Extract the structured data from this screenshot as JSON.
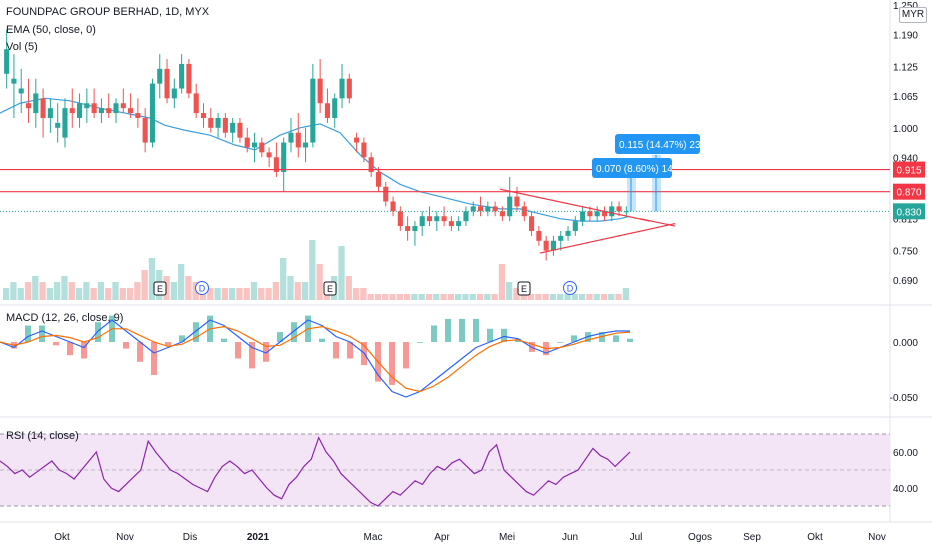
{
  "header": {
    "title": "FOUNDPAC GROUP BERHAD, 1D, MYX",
    "ema_label": "EMA (50, close, 0)",
    "vol_label": "Vol (5)",
    "macd_label": "MACD (12, 26, close, 9)",
    "rsi_label": "RSI (14, close)",
    "currency": "MYR"
  },
  "colors": {
    "up": "#26a69a",
    "down": "#ef5350",
    "ema": "#3c9ee0",
    "macd": "#2962ff",
    "signal": "#ff6d00",
    "rsi": "#8e24aa",
    "rsi_band": "#f3e5f5",
    "hline": "#f23645",
    "measure": "#2196f3",
    "last": "#26a69a"
  },
  "chart_data": [
    {
      "type": "candlestick",
      "title": "FOUNDPAC GROUP BERHAD, 1D, MYX",
      "ylabel": "MYR",
      "ylim": [
        0.66,
        1.25
      ],
      "yticks": [
        "1.250",
        "1.190",
        "1.125",
        "1.065",
        "1.000",
        "0.940",
        "0.875",
        "0.815",
        "0.750",
        "0.690"
      ],
      "xticks": [
        "Okt",
        "Nov",
        "Dis",
        "2021",
        "Mac",
        "Apr",
        "Mei",
        "Jun",
        "Jul",
        "Ogos",
        "Sep",
        "Okt",
        "Nov"
      ],
      "price_levels": [
        {
          "label": "0.915",
          "value": 0.915
        },
        {
          "label": "0.870",
          "value": 0.87
        },
        {
          "label": "0.830",
          "value": 0.83,
          "kind": "last"
        }
      ],
      "ema_points": [
        [
          0,
          1.03
        ],
        [
          20,
          1.05
        ],
        [
          45,
          1.06
        ],
        [
          70,
          1.055
        ],
        [
          100,
          1.04
        ],
        [
          125,
          1.03
        ],
        [
          150,
          1.02
        ],
        [
          165,
          1.005
        ],
        [
          185,
          0.995
        ],
        [
          210,
          0.985
        ],
        [
          235,
          0.965
        ],
        [
          255,
          0.955
        ],
        [
          280,
          0.985
        ],
        [
          300,
          1.0
        ],
        [
          320,
          1.008
        ],
        [
          340,
          0.99
        ],
        [
          360,
          0.945
        ],
        [
          380,
          0.91
        ],
        [
          400,
          0.885
        ],
        [
          420,
          0.87
        ],
        [
          440,
          0.86
        ],
        [
          470,
          0.845
        ],
        [
          500,
          0.835
        ],
        [
          520,
          0.835
        ],
        [
          540,
          0.825
        ],
        [
          560,
          0.815
        ],
        [
          580,
          0.81
        ],
        [
          600,
          0.81
        ],
        [
          620,
          0.815
        ],
        [
          630,
          0.82
        ]
      ],
      "candles": [
        {
          "o": 1.11,
          "h": 1.2,
          "l": 1.08,
          "c": 1.16
        },
        {
          "o": 1.09,
          "h": 1.15,
          "l": 1.02,
          "c": 1.1
        },
        {
          "o": 1.07,
          "h": 1.12,
          "l": 1.03,
          "c": 1.08
        },
        {
          "o": 1.05,
          "h": 1.1,
          "l": 1.01,
          "c": 1.04
        },
        {
          "o": 1.03,
          "h": 1.1,
          "l": 1.0,
          "c": 1.07
        },
        {
          "o": 1.06,
          "h": 1.08,
          "l": 0.98,
          "c": 1.02
        },
        {
          "o": 1.02,
          "h": 1.06,
          "l": 0.99,
          "c": 1.04
        },
        {
          "o": 1.0,
          "h": 1.05,
          "l": 0.97,
          "c": 1.01
        },
        {
          "o": 0.98,
          "h": 1.06,
          "l": 0.96,
          "c": 1.04
        },
        {
          "o": 1.04,
          "h": 1.08,
          "l": 1.0,
          "c": 1.03
        },
        {
          "o": 1.02,
          "h": 1.07,
          "l": 1.0,
          "c": 1.05
        },
        {
          "o": 1.04,
          "h": 1.08,
          "l": 1.01,
          "c": 1.05
        },
        {
          "o": 1.05,
          "h": 1.08,
          "l": 1.02,
          "c": 1.03
        },
        {
          "o": 1.03,
          "h": 1.06,
          "l": 1.01,
          "c": 1.04
        },
        {
          "o": 1.04,
          "h": 1.07,
          "l": 1.02,
          "c": 1.03
        },
        {
          "o": 1.03,
          "h": 1.06,
          "l": 1.01,
          "c": 1.05
        },
        {
          "o": 1.05,
          "h": 1.08,
          "l": 1.03,
          "c": 1.04
        },
        {
          "o": 1.04,
          "h": 1.07,
          "l": 1.02,
          "c": 1.03
        },
        {
          "o": 1.03,
          "h": 1.06,
          "l": 1.0,
          "c": 1.02
        },
        {
          "o": 1.02,
          "h": 1.04,
          "l": 0.95,
          "c": 0.97
        },
        {
          "o": 0.97,
          "h": 1.1,
          "l": 0.96,
          "c": 1.09
        },
        {
          "o": 1.09,
          "h": 1.15,
          "l": 1.06,
          "c": 1.12
        },
        {
          "o": 1.12,
          "h": 1.14,
          "l": 1.05,
          "c": 1.06
        },
        {
          "o": 1.06,
          "h": 1.1,
          "l": 1.04,
          "c": 1.08
        },
        {
          "o": 1.08,
          "h": 1.15,
          "l": 1.07,
          "c": 1.13
        },
        {
          "o": 1.13,
          "h": 1.14,
          "l": 1.06,
          "c": 1.07
        },
        {
          "o": 1.07,
          "h": 1.09,
          "l": 1.02,
          "c": 1.03
        },
        {
          "o": 1.03,
          "h": 1.05,
          "l": 1.0,
          "c": 1.02
        },
        {
          "o": 1.02,
          "h": 1.04,
          "l": 0.99,
          "c": 1.0
        },
        {
          "o": 1.0,
          "h": 1.03,
          "l": 0.98,
          "c": 1.02
        },
        {
          "o": 1.02,
          "h": 1.03,
          "l": 0.98,
          "c": 0.99
        },
        {
          "o": 0.99,
          "h": 1.02,
          "l": 0.97,
          "c": 1.01
        },
        {
          "o": 1.01,
          "h": 1.02,
          "l": 0.97,
          "c": 0.98
        },
        {
          "o": 0.98,
          "h": 1.0,
          "l": 0.95,
          "c": 0.96
        },
        {
          "o": 0.96,
          "h": 0.99,
          "l": 0.93,
          "c": 0.97
        },
        {
          "o": 0.97,
          "h": 0.98,
          "l": 0.94,
          "c": 0.95
        },
        {
          "o": 0.95,
          "h": 0.96,
          "l": 0.92,
          "c": 0.94
        },
        {
          "o": 0.94,
          "h": 0.97,
          "l": 0.9,
          "c": 0.91
        },
        {
          "o": 0.91,
          "h": 0.98,
          "l": 0.87,
          "c": 0.97
        },
        {
          "o": 0.97,
          "h": 1.02,
          "l": 0.95,
          "c": 0.99
        },
        {
          "o": 0.99,
          "h": 1.03,
          "l": 0.94,
          "c": 0.96
        },
        {
          "o": 0.96,
          "h": 1.0,
          "l": 0.93,
          "c": 0.97
        },
        {
          "o": 0.97,
          "h": 1.13,
          "l": 0.96,
          "c": 1.1
        },
        {
          "o": 1.1,
          "h": 1.14,
          "l": 1.03,
          "c": 1.05
        },
        {
          "o": 1.05,
          "h": 1.08,
          "l": 1.01,
          "c": 1.02
        },
        {
          "o": 1.02,
          "h": 1.07,
          "l": 1.0,
          "c": 1.06
        },
        {
          "o": 1.06,
          "h": 1.13,
          "l": 1.04,
          "c": 1.1
        },
        {
          "o": 1.1,
          "h": 1.11,
          "l": 1.05,
          "c": 1.06
        },
        {
          "o": 0.98,
          "h": 0.99,
          "l": 0.95,
          "c": 0.97
        },
        {
          "o": 0.97,
          "h": 0.98,
          "l": 0.93,
          "c": 0.94
        },
        {
          "o": 0.94,
          "h": 0.95,
          "l": 0.9,
          "c": 0.91
        },
        {
          "o": 0.91,
          "h": 0.92,
          "l": 0.87,
          "c": 0.88
        },
        {
          "o": 0.88,
          "h": 0.89,
          "l": 0.84,
          "c": 0.85
        },
        {
          "o": 0.85,
          "h": 0.86,
          "l": 0.82,
          "c": 0.83
        },
        {
          "o": 0.83,
          "h": 0.84,
          "l": 0.79,
          "c": 0.8
        },
        {
          "o": 0.8,
          "h": 0.82,
          "l": 0.77,
          "c": 0.79
        },
        {
          "o": 0.79,
          "h": 0.81,
          "l": 0.76,
          "c": 0.8
        },
        {
          "o": 0.8,
          "h": 0.83,
          "l": 0.78,
          "c": 0.82
        },
        {
          "o": 0.82,
          "h": 0.84,
          "l": 0.8,
          "c": 0.81
        },
        {
          "o": 0.81,
          "h": 0.83,
          "l": 0.79,
          "c": 0.82
        },
        {
          "o": 0.82,
          "h": 0.84,
          "l": 0.8,
          "c": 0.81
        },
        {
          "o": 0.81,
          "h": 0.82,
          "l": 0.79,
          "c": 0.8
        },
        {
          "o": 0.8,
          "h": 0.82,
          "l": 0.79,
          "c": 0.81
        },
        {
          "o": 0.81,
          "h": 0.84,
          "l": 0.8,
          "c": 0.83
        },
        {
          "o": 0.83,
          "h": 0.85,
          "l": 0.82,
          "c": 0.84
        },
        {
          "o": 0.84,
          "h": 0.86,
          "l": 0.82,
          "c": 0.83
        },
        {
          "o": 0.83,
          "h": 0.85,
          "l": 0.82,
          "c": 0.84
        },
        {
          "o": 0.84,
          "h": 0.85,
          "l": 0.82,
          "c": 0.83
        },
        {
          "o": 0.83,
          "h": 0.84,
          "l": 0.81,
          "c": 0.82
        },
        {
          "o": 0.82,
          "h": 0.9,
          "l": 0.81,
          "c": 0.86
        },
        {
          "o": 0.86,
          "h": 0.88,
          "l": 0.83,
          "c": 0.84
        },
        {
          "o": 0.84,
          "h": 0.85,
          "l": 0.81,
          "c": 0.82
        },
        {
          "o": 0.82,
          "h": 0.83,
          "l": 0.78,
          "c": 0.79
        },
        {
          "o": 0.79,
          "h": 0.8,
          "l": 0.76,
          "c": 0.77
        },
        {
          "o": 0.77,
          "h": 0.78,
          "l": 0.73,
          "c": 0.75
        },
        {
          "o": 0.75,
          "h": 0.78,
          "l": 0.74,
          "c": 0.77
        },
        {
          "o": 0.77,
          "h": 0.79,
          "l": 0.75,
          "c": 0.78
        },
        {
          "o": 0.78,
          "h": 0.8,
          "l": 0.77,
          "c": 0.79
        },
        {
          "o": 0.79,
          "h": 0.82,
          "l": 0.78,
          "c": 0.81
        },
        {
          "o": 0.81,
          "h": 0.84,
          "l": 0.8,
          "c": 0.83
        },
        {
          "o": 0.83,
          "h": 0.84,
          "l": 0.81,
          "c": 0.82
        },
        {
          "o": 0.82,
          "h": 0.84,
          "l": 0.81,
          "c": 0.83
        },
        {
          "o": 0.83,
          "h": 0.84,
          "l": 0.81,
          "c": 0.82
        },
        {
          "o": 0.82,
          "h": 0.85,
          "l": 0.81,
          "c": 0.84
        },
        {
          "o": 0.84,
          "h": 0.85,
          "l": 0.82,
          "c": 0.83
        },
        {
          "o": 0.83,
          "h": 0.84,
          "l": 0.82,
          "c": 0.83
        }
      ],
      "volume": [
        0.2,
        0.3,
        0.2,
        0.3,
        0.4,
        0.3,
        0.2,
        0.3,
        0.4,
        0.3,
        0.2,
        0.3,
        0.2,
        0.3,
        0.2,
        0.3,
        0.2,
        0.2,
        0.3,
        0.5,
        0.7,
        0.5,
        0.4,
        0.3,
        0.6,
        0.4,
        0.3,
        0.2,
        0.2,
        0.2,
        0.2,
        0.2,
        0.2,
        0.2,
        0.3,
        0.2,
        0.2,
        0.3,
        0.7,
        0.4,
        0.3,
        0.3,
        1.0,
        0.6,
        0.3,
        0.4,
        0.9,
        0.4,
        0.2,
        0.2,
        0.1,
        0.1,
        0.1,
        0.1,
        0.1,
        0.1,
        0.1,
        0.1,
        0.1,
        0.1,
        0.1,
        0.1,
        0.1,
        0.1,
        0.1,
        0.1,
        0.1,
        0.1,
        0.6,
        0.3,
        0.2,
        0.1,
        0.1,
        0.1,
        0.1,
        0.1,
        0.1,
        0.1,
        0.1,
        0.1,
        0.1,
        0.1,
        0.1,
        0.1,
        0.1,
        0.2
      ],
      "annotations": [
        {
          "kind": "measure",
          "text": "0.070 (8.60%) 14",
          "from": 0.83,
          "to": 0.9
        },
        {
          "kind": "measure",
          "text": "0.115 (14.47%) 23",
          "from": 0.83,
          "to": 0.945
        }
      ],
      "events": [
        "E",
        "D",
        "E",
        "E",
        "D"
      ]
    },
    {
      "type": "line",
      "title": "MACD (12, 26, close, 9)",
      "yticks": [
        "0.000",
        "-0.050"
      ],
      "series": [
        {
          "values": [
            0.0,
            -0.005,
            0.005,
            0.01,
            0.005,
            0.0,
            -0.005,
            0.01,
            0.02,
            0.01,
            0.0,
            -0.01,
            -0.005,
            0.0,
            0.01,
            0.02,
            0.015,
            0.005,
            -0.005,
            -0.01,
            0.0,
            0.01,
            0.02,
            0.015,
            0.005,
            0.0,
            -0.01,
            -0.03,
            -0.045,
            -0.05,
            -0.045,
            -0.035,
            -0.025,
            -0.015,
            -0.005,
            0.0,
            0.005,
            0.003,
            -0.005,
            -0.01,
            -0.005,
            0.0,
            0.005,
            0.008,
            0.01,
            0.01
          ]
        },
        {
          "values": [
            0.0,
            -0.003,
            0.0,
            0.005,
            0.006,
            0.004,
            0.0,
            0.004,
            0.012,
            0.012,
            0.006,
            0.0,
            -0.004,
            -0.002,
            0.004,
            0.012,
            0.014,
            0.01,
            0.003,
            -0.004,
            -0.003,
            0.004,
            0.012,
            0.014,
            0.01,
            0.005,
            -0.003,
            -0.018,
            -0.032,
            -0.042,
            -0.045,
            -0.04,
            -0.032,
            -0.022,
            -0.012,
            -0.004,
            0.001,
            0.002,
            -0.002,
            -0.006,
            -0.005,
            -0.002,
            0.002,
            0.005,
            0.008,
            0.009
          ]
        }
      ]
    },
    {
      "type": "line",
      "title": "RSI (14, close)",
      "ylim": [
        25,
        75
      ],
      "yticks": [
        "60.00",
        "40.00"
      ],
      "series": [
        {
          "values": [
            55,
            52,
            48,
            50,
            46,
            49,
            52,
            55,
            50,
            48,
            45,
            50,
            55,
            60,
            45,
            40,
            38,
            42,
            46,
            50,
            66,
            60,
            55,
            50,
            48,
            45,
            42,
            40,
            38,
            46,
            52,
            55,
            52,
            48,
            50,
            45,
            40,
            36,
            34,
            42,
            46,
            52,
            56,
            68,
            60,
            55,
            48,
            44,
            40,
            36,
            32,
            30,
            34,
            38,
            36,
            40,
            44,
            42,
            48,
            52,
            50,
            54,
            56,
            52,
            48,
            50,
            60,
            64,
            50,
            46,
            42,
            38,
            36,
            40,
            44,
            42,
            46,
            48,
            50,
            56,
            62,
            58,
            56,
            52,
            56,
            60
          ]
        }
      ]
    }
  ],
  "x_axis": [
    "Okt",
    "Nov",
    "Dis",
    "2021",
    "Mac",
    "Apr",
    "Mei",
    "Jun",
    "Jul",
    "Ogos",
    "Sep",
    "Okt",
    "Nov"
  ]
}
